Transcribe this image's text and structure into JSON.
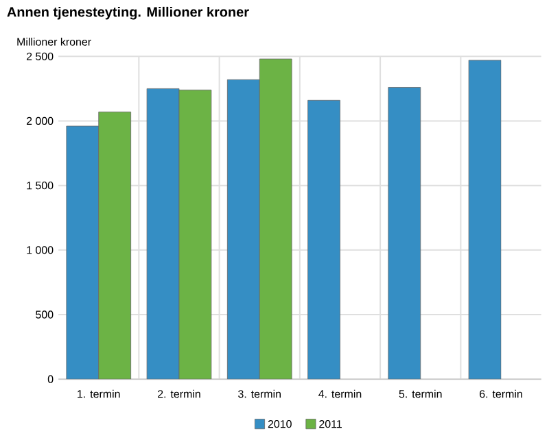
{
  "chart_data": {
    "type": "bar",
    "title": "Annen tjenesteyting. Millioner kroner",
    "ylabel": "Millioner kroner",
    "categories": [
      "1. termin",
      "2. termin",
      "3. termin",
      "4. termin",
      "5. termin",
      "6. termin"
    ],
    "series": [
      {
        "name": "2010",
        "color": "#358ec4",
        "values": [
          1960,
          2250,
          2320,
          2160,
          2260,
          2470
        ]
      },
      {
        "name": "2011",
        "color": "#6cb345",
        "values": [
          2070,
          2240,
          2480,
          null,
          null,
          null
        ]
      }
    ],
    "ylim": [
      0,
      2500
    ],
    "yticks": [
      {
        "value": 0,
        "label": "0"
      },
      {
        "value": 500,
        "label": "500"
      },
      {
        "value": 1000,
        "label": "1 000"
      },
      {
        "value": 1500,
        "label": "1 500"
      },
      {
        "value": 2000,
        "label": "2 000"
      },
      {
        "value": 2500,
        "label": "2 500"
      }
    ],
    "grid": true,
    "legend": "bottom"
  }
}
